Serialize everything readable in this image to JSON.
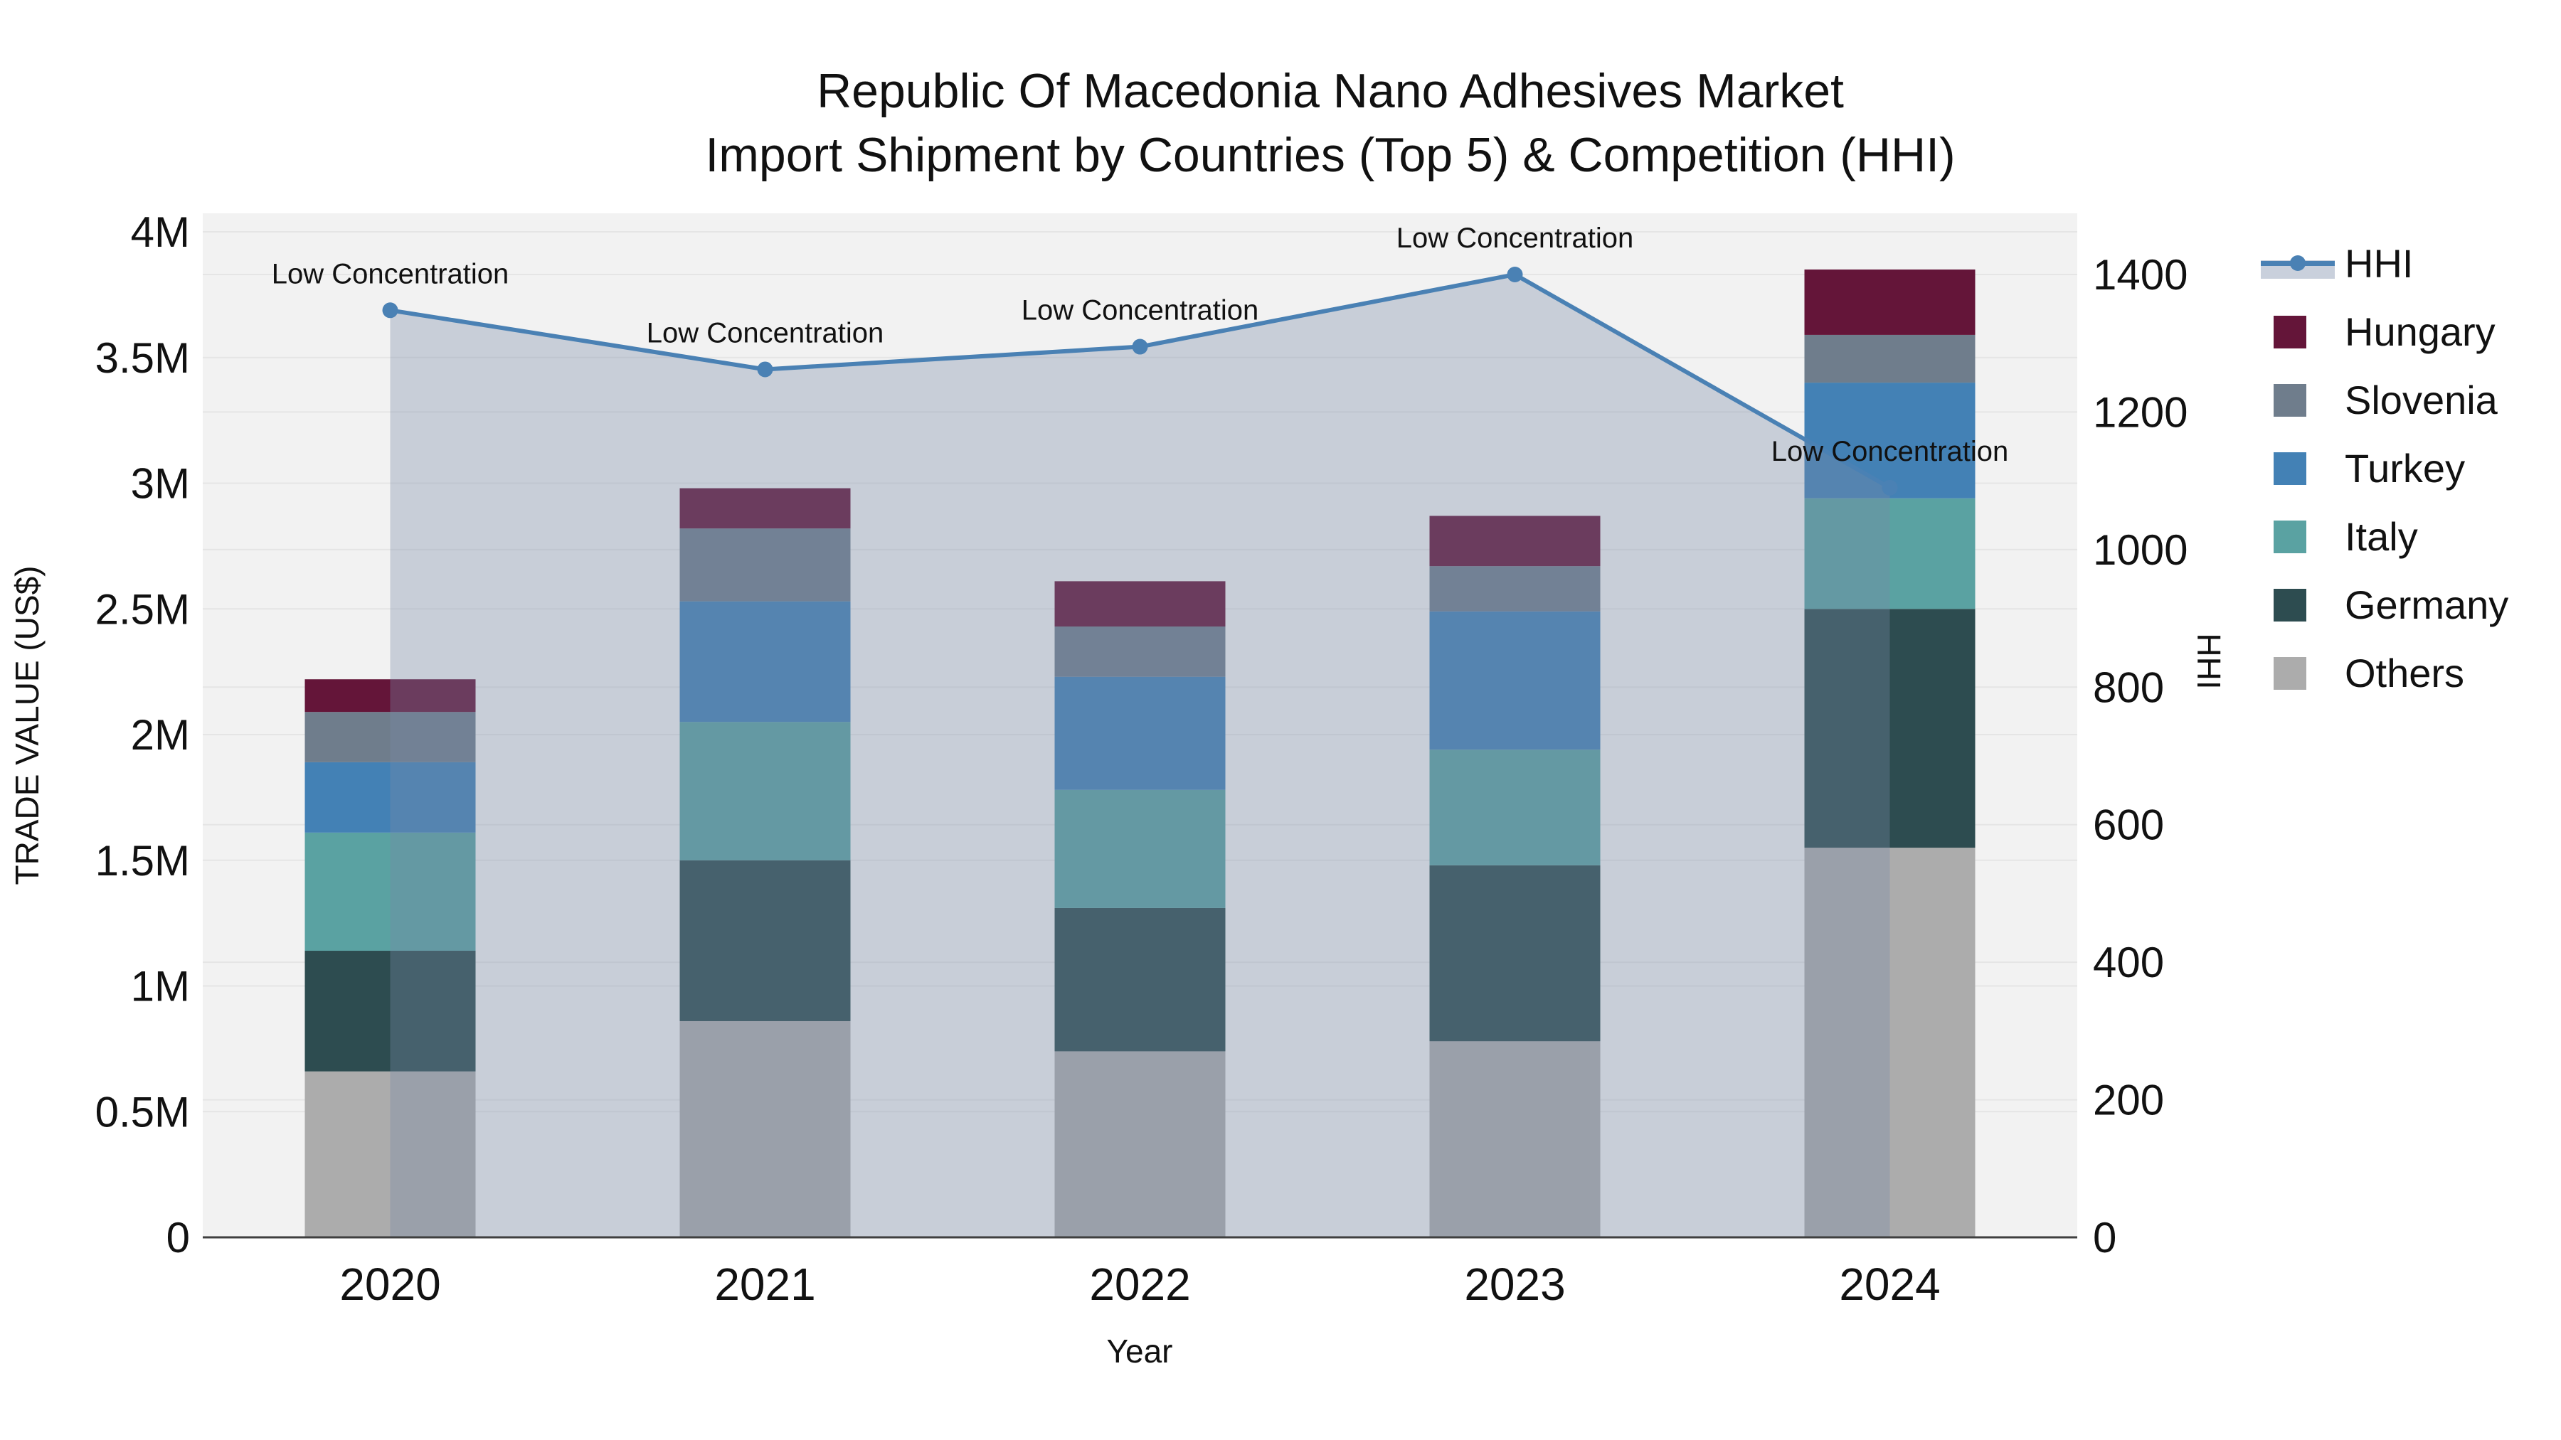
{
  "title": {
    "line1": "Republic Of Macedonia Nano Adhesives Market",
    "line2": "Import Shipment by Countries (Top 5) & Competition (HHI)"
  },
  "axes": {
    "left": {
      "title": "TRADE VALUE (US$)",
      "ticks": [
        "0",
        "0.5M",
        "1M",
        "1.5M",
        "2M",
        "2.5M",
        "3M",
        "3.5M",
        "4M"
      ]
    },
    "right": {
      "title": "HHI",
      "ticks": [
        "0",
        "200",
        "400",
        "600",
        "800",
        "1000",
        "1200",
        "1400"
      ]
    },
    "bottom": {
      "title": "Year"
    }
  },
  "legend": {
    "items": [
      {
        "label": "HHI",
        "type": "line",
        "color": "#4A81B4"
      },
      {
        "label": "Hungary",
        "type": "square",
        "color": "#641539"
      },
      {
        "label": "Slovenia",
        "type": "square",
        "color": "#6F7D8C"
      },
      {
        "label": "Turkey",
        "type": "square",
        "color": "#4381B5"
      },
      {
        "label": "Italy",
        "type": "square",
        "color": "#5AA2A2"
      },
      {
        "label": "Germany",
        "type": "square",
        "color": "#2D4C50"
      },
      {
        "label": "Others",
        "type": "square",
        "color": "#ACACAC"
      }
    ]
  },
  "chart_data": {
    "type": "bar+line",
    "title": "Republic Of Macedonia Nano Adhesives Market — Import Shipment by Countries (Top 5) & Competition (HHI)",
    "categories": [
      "2020",
      "2021",
      "2022",
      "2023",
      "2024"
    ],
    "xlabel": "Year",
    "ylabel_left": "TRADE VALUE (US$)",
    "ylabel_right": "HHI",
    "ylim_left_millions": [
      0,
      4
    ],
    "ylim_right": [
      0,
      1400
    ],
    "grid": true,
    "legend_position": "right",
    "bar_value_unit": "millions of US$",
    "stack_bottom_to_top": [
      "Others",
      "Germany",
      "Italy",
      "Turkey",
      "Slovenia",
      "Hungary"
    ],
    "series": [
      {
        "name": "Hungary",
        "color": "#641539",
        "values": [
          0.13,
          0.16,
          0.18,
          0.2,
          0.26
        ]
      },
      {
        "name": "Slovenia",
        "color": "#6F7D8C",
        "values": [
          0.2,
          0.29,
          0.2,
          0.18,
          0.19
        ]
      },
      {
        "name": "Turkey",
        "color": "#4381B5",
        "values": [
          0.28,
          0.48,
          0.45,
          0.55,
          0.46
        ]
      },
      {
        "name": "Italy",
        "color": "#5AA2A2",
        "values": [
          0.47,
          0.55,
          0.47,
          0.46,
          0.44
        ]
      },
      {
        "name": "Germany",
        "color": "#2D4C50",
        "values": [
          0.48,
          0.64,
          0.57,
          0.7,
          0.95
        ]
      },
      {
        "name": "Others",
        "color": "#ACACAC",
        "values": [
          0.66,
          0.86,
          0.74,
          0.78,
          1.55
        ]
      }
    ],
    "stack_totals_millions": [
      2.22,
      2.98,
      2.61,
      2.87,
      3.85
    ],
    "line": {
      "name": "HHI",
      "color": "#4A81B4",
      "area_fill": "rgba(121,138,168,0.34)",
      "values": [
        1348,
        1262,
        1295,
        1400,
        1090
      ]
    },
    "annotations": [
      {
        "text": "Low Concentration",
        "category_index": 0
      },
      {
        "text": "Low Concentration",
        "category_index": 1
      },
      {
        "text": "Low Concentration",
        "category_index": 2
      },
      {
        "text": "Low Concentration",
        "category_index": 3
      },
      {
        "text": "Low Concentration",
        "category_index": 4
      }
    ],
    "colors": {
      "plot_background": "#f2f2f2",
      "page_background": "#ffffff",
      "gridline": "#e5e5e5",
      "axis_line": "#3f3f3f",
      "text": "#111111"
    }
  }
}
